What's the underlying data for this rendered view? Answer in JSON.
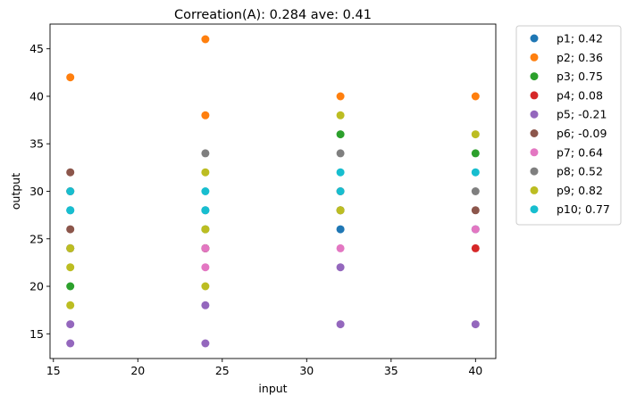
{
  "chart_data": {
    "type": "scatter",
    "title": "Correation(A): 0.284 ave: 0.41",
    "xlabel": "input",
    "ylabel": "output",
    "xlim": [
      14.8,
      41.2
    ],
    "ylim": [
      12.4,
      47.6
    ],
    "xticks": [
      15,
      20,
      25,
      30,
      35,
      40
    ],
    "yticks": [
      15,
      20,
      25,
      30,
      35,
      40,
      45
    ],
    "grid": false,
    "legend_position": "outside-right",
    "series": [
      {
        "name": "p1; 0.42",
        "color": "#1f77b4",
        "points": [
          [
            16,
            28
          ],
          [
            16,
            24
          ],
          [
            24,
            28
          ],
          [
            24,
            24
          ],
          [
            32,
            26
          ],
          [
            40,
            26
          ]
        ]
      },
      {
        "name": "p2; 0.36",
        "color": "#ff7f0e",
        "points": [
          [
            16,
            42
          ],
          [
            24,
            46
          ],
          [
            24,
            38
          ],
          [
            32,
            40
          ],
          [
            40,
            40
          ]
        ]
      },
      {
        "name": "p3; 0.75",
        "color": "#2ca02c",
        "points": [
          [
            16,
            20
          ],
          [
            16,
            24
          ],
          [
            24,
            26
          ],
          [
            32,
            36
          ],
          [
            32,
            28
          ],
          [
            40,
            34
          ]
        ]
      },
      {
        "name": "p4; 0.08",
        "color": "#d62728",
        "points": [
          [
            16,
            30
          ],
          [
            24,
            24
          ],
          [
            32,
            30
          ],
          [
            40,
            24
          ]
        ]
      },
      {
        "name": "p5; -0.21",
        "color": "#9467bd",
        "points": [
          [
            16,
            16
          ],
          [
            16,
            14
          ],
          [
            24,
            18
          ],
          [
            24,
            14
          ],
          [
            32,
            22
          ],
          [
            32,
            16
          ],
          [
            40,
            16
          ]
        ]
      },
      {
        "name": "p6; -0.09",
        "color": "#8c564b",
        "points": [
          [
            16,
            32
          ],
          [
            16,
            26
          ],
          [
            24,
            24
          ],
          [
            32,
            28
          ],
          [
            40,
            28
          ]
        ]
      },
      {
        "name": "p7; 0.64",
        "color": "#e377c2",
        "points": [
          [
            16,
            24
          ],
          [
            24,
            22
          ],
          [
            24,
            24
          ],
          [
            32,
            24
          ],
          [
            40,
            26
          ]
        ]
      },
      {
        "name": "p8; 0.52",
        "color": "#7f7f7f",
        "points": [
          [
            16,
            30
          ],
          [
            24,
            34
          ],
          [
            32,
            34
          ],
          [
            40,
            30
          ]
        ]
      },
      {
        "name": "p9; 0.82",
        "color": "#bcbd22",
        "points": [
          [
            16,
            22
          ],
          [
            16,
            18
          ],
          [
            16,
            24
          ],
          [
            24,
            32
          ],
          [
            24,
            26
          ],
          [
            24,
            20
          ],
          [
            32,
            38
          ],
          [
            32,
            28
          ],
          [
            40,
            36
          ]
        ]
      },
      {
        "name": "p10; 0.77",
        "color": "#17becf",
        "points": [
          [
            16,
            30
          ],
          [
            16,
            28
          ],
          [
            24,
            30
          ],
          [
            24,
            28
          ],
          [
            32,
            32
          ],
          [
            32,
            30
          ],
          [
            40,
            32
          ]
        ]
      }
    ]
  }
}
